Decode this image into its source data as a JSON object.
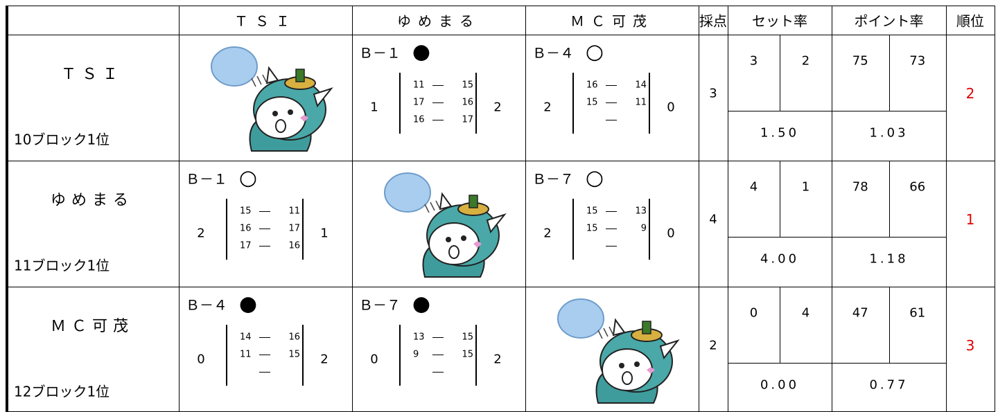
{
  "header": [
    "ＴＳＩ",
    "ゆめまる",
    "ＭＣ可茂",
    "採点",
    "セット率",
    "ポイント率",
    "順位"
  ],
  "rows": [
    {
      "team": "ＴＳＩ",
      "block": "10ブロック1位",
      "cells": [
        null,
        {
          "id": "Ｂ－１",
          "mark": "●",
          "left": 1,
          "right": 2,
          "games": [
            [
              11,
              15
            ],
            [
              17,
              16
            ],
            [
              16,
              17
            ]
          ]
        },
        {
          "id": "Ｂ－４",
          "mark": "○",
          "left": 2,
          "right": 0,
          "games": [
            [
              16,
              14
            ],
            [
              15,
              11
            ],
            null
          ]
        }
      ],
      "score": 3,
      "sets": [
        3,
        2
      ],
      "set_rate": "1.50",
      "points": [
        75,
        73
      ],
      "point_rate": "1.03",
      "rank": 2
    },
    {
      "team": "ゆめまる",
      "block": "11ブロック1位",
      "cells": [
        {
          "id": "Ｂ－１",
          "mark": "○",
          "left": 2,
          "right": 1,
          "games": [
            [
              15,
              11
            ],
            [
              16,
              17
            ],
            [
              17,
              16
            ]
          ]
        },
        null,
        {
          "id": "Ｂ－７",
          "mark": "○",
          "left": 2,
          "right": 0,
          "games": [
            [
              15,
              13
            ],
            [
              15,
              9
            ],
            null
          ]
        }
      ],
      "score": 4,
      "sets": [
        4,
        1
      ],
      "set_rate": "4.00",
      "points": [
        78,
        66
      ],
      "point_rate": "1.18",
      "rank": 1
    },
    {
      "team": "ＭＣ可茂",
      "block": "12ブロック1位",
      "cells": [
        {
          "id": "Ｂ－４",
          "mark": "●",
          "left": 0,
          "right": 2,
          "games": [
            [
              14,
              16
            ],
            [
              11,
              15
            ],
            null
          ]
        },
        {
          "id": "Ｂ－７",
          "mark": "●",
          "left": 0,
          "right": 2,
          "games": [
            [
              13,
              15
            ],
            [
              9,
              15
            ],
            null
          ]
        },
        null
      ],
      "score": 2,
      "sets": [
        0,
        4
      ],
      "set_rate": "0.00",
      "points": [
        47,
        61
      ],
      "point_rate": "0.77",
      "rank": 3
    }
  ]
}
